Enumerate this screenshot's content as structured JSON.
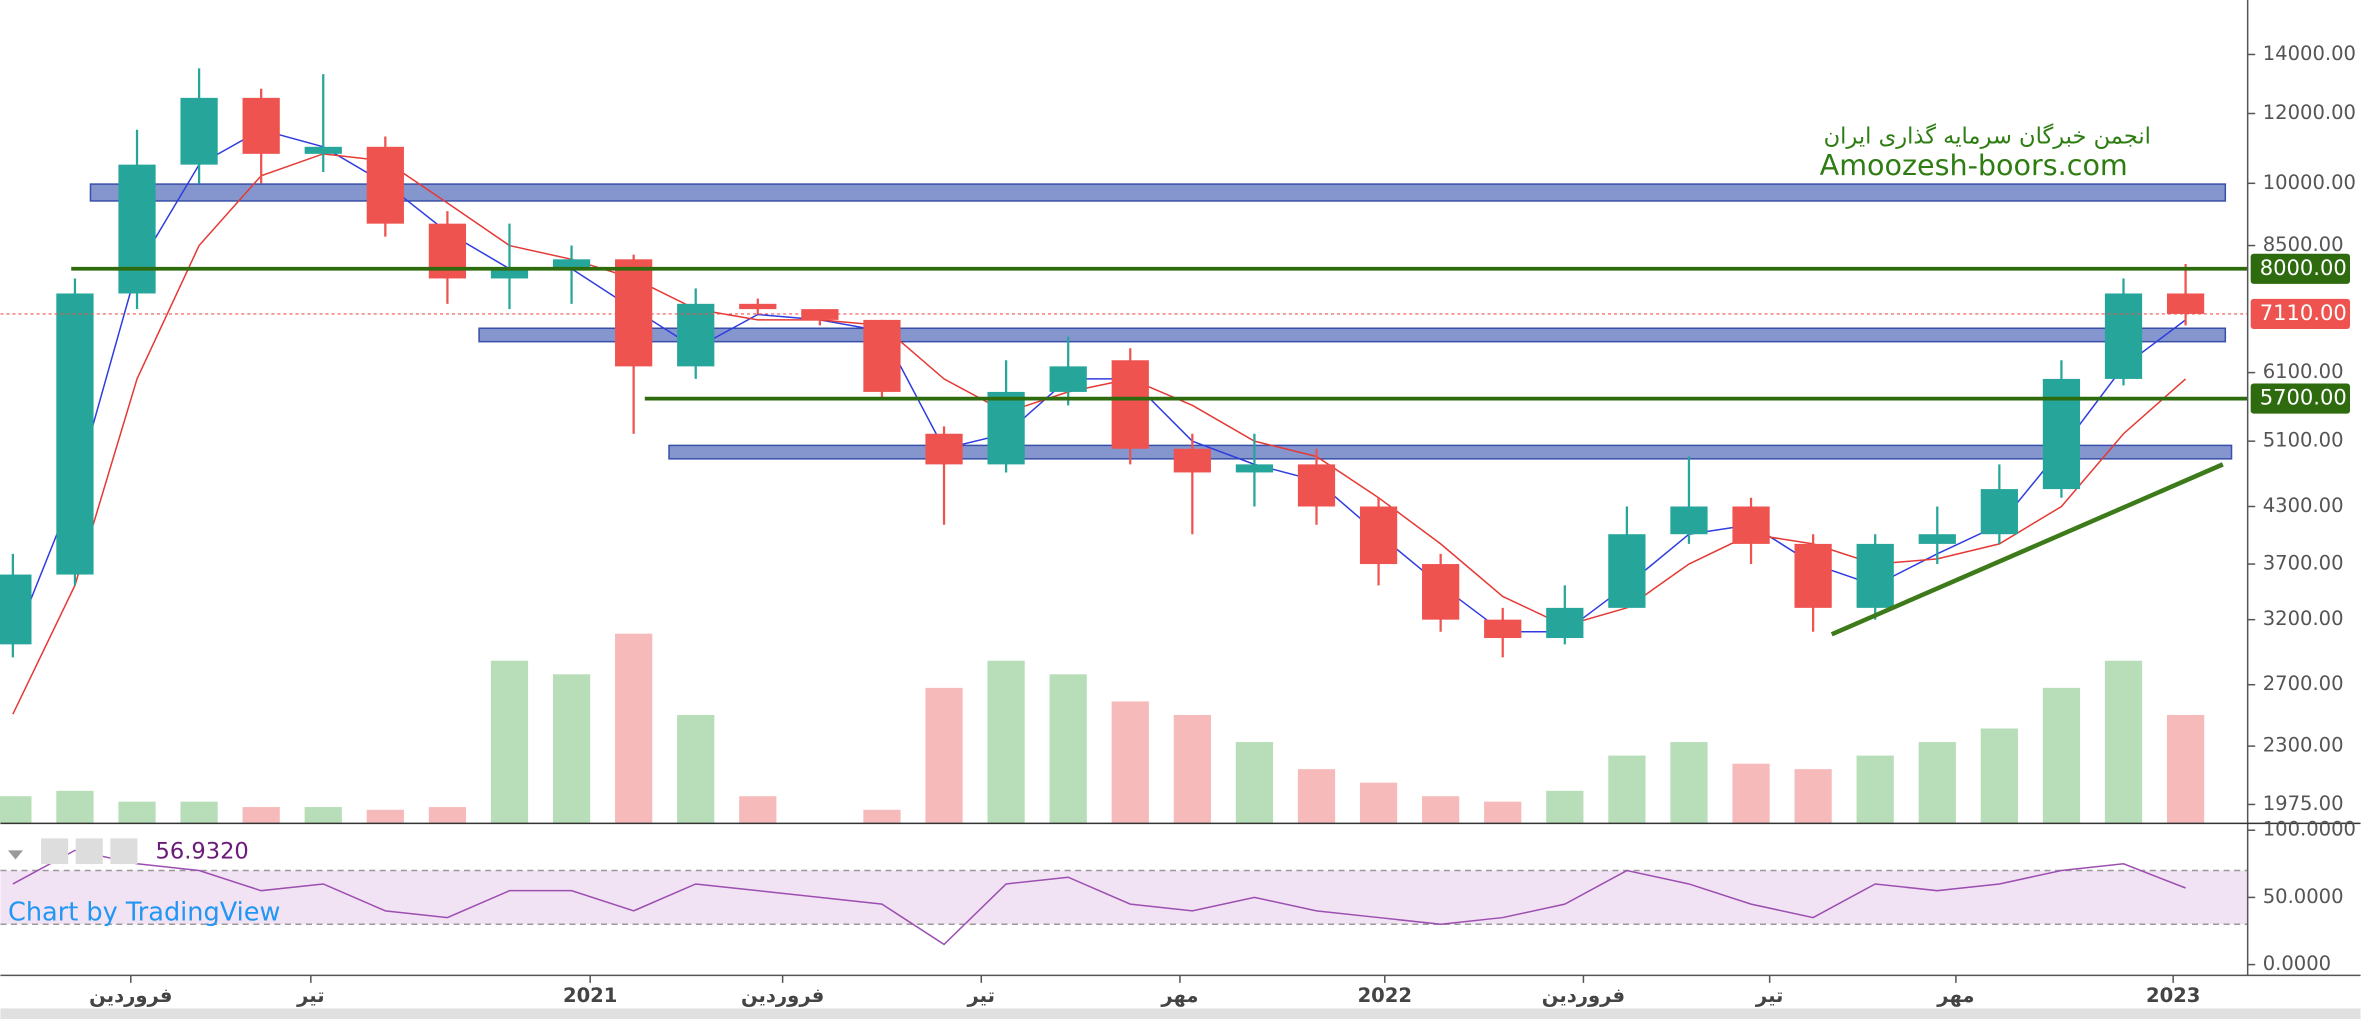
{
  "chart_data": {
    "type": "candlestick",
    "log_scale": true,
    "watermark_line1": "انجمن خبرگان سرمایه گذاری ایران",
    "watermark_line2": "Amoozesh-boors.com",
    "credit": "Chart by TradingView",
    "x": [
      0,
      1,
      2,
      3,
      4,
      5,
      6,
      7,
      8,
      9,
      10,
      11,
      12,
      13,
      14,
      15,
      16,
      17,
      18,
      19,
      20,
      21,
      22,
      23,
      24,
      25,
      26,
      27,
      28,
      29,
      30,
      31,
      32,
      33,
      34,
      35
    ],
    "open": [
      3000,
      3600,
      7500,
      10500,
      12500,
      10800,
      11000,
      9000,
      7800,
      8000,
      8200,
      6200,
      7300,
      7200,
      7000,
      5200,
      4800,
      5800,
      6300,
      5000,
      4700,
      4800,
      4300,
      3700,
      3200,
      3050,
      3300,
      4000,
      4300,
      3900,
      3300,
      3900,
      4000,
      4500,
      6000,
      7500
    ],
    "high": [
      3800,
      7800,
      11500,
      13500,
      12800,
      13300,
      11300,
      9300,
      9000,
      8500,
      8300,
      7600,
      7400,
      7200,
      7000,
      5300,
      6300,
      6700,
      6500,
      5200,
      5200,
      5000,
      4400,
      3800,
      3300,
      3500,
      4300,
      4900,
      4400,
      4000,
      4000,
      4300,
      4800,
      6300,
      7800,
      8100
    ],
    "low": [
      2900,
      3500,
      7200,
      10000,
      10000,
      10300,
      8700,
      7300,
      7200,
      7300,
      5200,
      6000,
      7100,
      6900,
      5700,
      4100,
      4700,
      5600,
      4800,
      4000,
      4300,
      4100,
      3500,
      3100,
      2900,
      3000,
      3300,
      3900,
      3700,
      3100,
      3200,
      3700,
      3900,
      4400,
      5900,
      6900
    ],
    "close": [
      3600,
      7500,
      10500,
      12500,
      10800,
      11000,
      9000,
      7800,
      8000,
      8200,
      6200,
      7300,
      7200,
      7000,
      5800,
      4800,
      5800,
      6200,
      5000,
      4700,
      4800,
      4300,
      3700,
      3200,
      3050,
      3300,
      4000,
      4300,
      3900,
      3300,
      3900,
      4000,
      4500,
      6000,
      7500,
      7110
    ],
    "up_color": "#26a69a",
    "down_color": "#ef5350",
    "series": [
      {
        "color": "#2f3de0",
        "values": [
          3000,
          4500,
          8000,
          10500,
          11500,
          11000,
          10000,
          8800,
          8000,
          8000,
          7200,
          6500,
          7100,
          7000,
          6800,
          5000,
          5200,
          6000,
          6000,
          5100,
          4800,
          4600,
          4000,
          3500,
          3100,
          3100,
          3500,
          4000,
          4100,
          3700,
          3500,
          3800,
          4100,
          5000,
          6200,
          7000
        ]
      },
      {
        "color": "#e53935",
        "values": [
          2500,
          3500,
          6000,
          8500,
          10200,
          10800,
          10600,
          9500,
          8500,
          8200,
          7800,
          7200,
          7000,
          7000,
          6900,
          6000,
          5500,
          5800,
          6000,
          5600,
          5100,
          4900,
          4400,
          3900,
          3400,
          3150,
          3300,
          3700,
          4000,
          3900,
          3700,
          3750,
          3900,
          4300,
          5200,
          6000
        ]
      }
    ],
    "volume": [
      10,
      12,
      8,
      8,
      6,
      6,
      5,
      6,
      60,
      55,
      70,
      40,
      10,
      0,
      5,
      50,
      60,
      55,
      45,
      40,
      30,
      20,
      15,
      10,
      8,
      12,
      25,
      30,
      22,
      20,
      25,
      30,
      35,
      50,
      60,
      40
    ],
    "vlim": [
      0,
      100
    ],
    "rsi": [
      60,
      85,
      75,
      70,
      55,
      60,
      40,
      35,
      55,
      55,
      40,
      60,
      55,
      50,
      45,
      15,
      60,
      65,
      45,
      40,
      50,
      40,
      35,
      30,
      35,
      45,
      70,
      60,
      45,
      35,
      60,
      55,
      60,
      70,
      75,
      57
    ],
    "rsi_last": {
      "value": 56.932,
      "label": "56.9320"
    },
    "rsi_color": "#9c4fb0",
    "rsi_band": [
      30,
      70
    ],
    "rsi_ylim": [
      -8,
      104
    ],
    "rsi_ticks": [
      {
        "value": 100,
        "label": "100.0000"
      },
      {
        "value": 50,
        "label": "50.0000"
      },
      {
        "value": 0,
        "label": "0.0000"
      }
    ],
    "xlim": [
      -0.2,
      36.0
    ],
    "xticks": [
      {
        "value": 1.9,
        "label": "فروردین"
      },
      {
        "value": 4.8,
        "label": "تیر"
      },
      {
        "value": 9.3,
        "label": "2021"
      },
      {
        "value": 12.4,
        "label": "فروردین"
      },
      {
        "value": 15.6,
        "label": "تیر"
      },
      {
        "value": 18.8,
        "label": "مهر"
      },
      {
        "value": 22.1,
        "label": "2022"
      },
      {
        "value": 25.3,
        "label": "فروردین"
      },
      {
        "value": 28.3,
        "label": "تیر"
      },
      {
        "value": 31.3,
        "label": "مهر"
      },
      {
        "value": 34.8,
        "label": "2023"
      }
    ],
    "ylim": [
      1880,
      16140
    ],
    "yticks": [
      {
        "value": 14000,
        "label": "14000.00"
      },
      {
        "value": 12000,
        "label": "12000.00"
      },
      {
        "value": 10000,
        "label": "10000.00"
      },
      {
        "value": 8500,
        "label": "8500.00"
      },
      {
        "value": 6100,
        "label": "6100.00"
      },
      {
        "value": 5100,
        "label": "5100.00"
      },
      {
        "value": 4300,
        "label": "4300.00"
      },
      {
        "value": 3700,
        "label": "3700.00"
      },
      {
        "value": 3200,
        "label": "3200.00"
      },
      {
        "value": 2700,
        "label": "2700.00"
      },
      {
        "value": 2300,
        "label": "2300.00"
      },
      {
        "value": 1975,
        "label": "1975.00"
      }
    ],
    "levels": [
      {
        "value": 8000,
        "label": "8000.00",
        "color": "#2e6b0f",
        "from": 0.94
      },
      {
        "value": 5700,
        "label": "5700.00",
        "color": "#2e6b0f",
        "from": 10.18
      },
      {
        "value": 7110,
        "label": "7110.00",
        "color": "#ef5350",
        "from": -0.2
      }
    ],
    "zones": [
      {
        "low": 9550,
        "high": 9980,
        "from": 1.25,
        "to": 35.64
      },
      {
        "low": 6613,
        "high": 6849,
        "from": 7.51,
        "to": 35.64
      },
      {
        "low": 4870,
        "high": 5044,
        "from": 10.57,
        "to": 35.74
      }
    ],
    "zone_color": "#8596cf",
    "trend": {
      "from": 29.3,
      "to": 35.6,
      "start": 3080,
      "end": 4800,
      "color": "#3d7a1a"
    }
  }
}
